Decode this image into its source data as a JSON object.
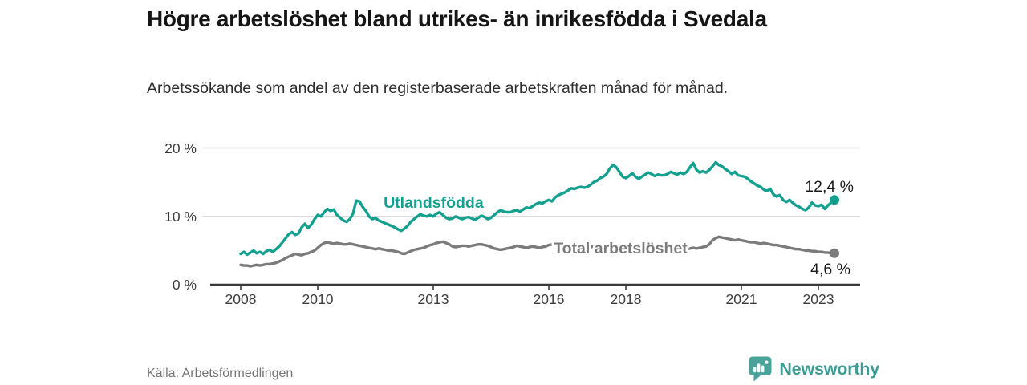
{
  "header": {
    "title": "Högre arbetslöshet bland utrikes- än inrikesfödda i Svedala",
    "subtitle": "Arbetssökande som andel av den registerbaserade arbetskraften månad för månad."
  },
  "footer": {
    "source": "Källa: Arbetsförmedlingen",
    "brand": "Newsworthy",
    "brand_icon": "bar-chart-speech-bubble-icon"
  },
  "colors": {
    "foreign_series": "#14a08e",
    "total_series": "#7b7b7b",
    "grid": "#dadada",
    "axis": "#3a3a3a",
    "tick_text": "#3d3d3d",
    "value_text": "#1a1a1a",
    "source_text": "#767676",
    "brand_teal": "#3e9c94",
    "brand_icon_teal": "#4aa29a"
  },
  "chart_data": {
    "type": "line",
    "title": "Högre arbetslöshet bland utrikes- än inrikesfödda i Svedala",
    "subtitle": "Arbetssökande som andel av den registerbaserade arbetskraften månad för månad.",
    "unit": "%",
    "x_interval": "monthly",
    "x_start": "2008-01",
    "x_end": "2023-06",
    "xlim": [
      2006.85,
      2024.1
    ],
    "ylim": [
      0,
      21
    ],
    "grid": "horizontal",
    "legend": "inline-labels",
    "y_ticks": [
      0,
      10,
      20
    ],
    "y_tick_labels": [
      "0 %",
      "10 %",
      "20 %"
    ],
    "x_ticks": [
      2008,
      2010,
      2013,
      2016,
      2018,
      2021,
      2023
    ],
    "x_tick_labels": [
      "2008",
      "2010",
      "2013",
      "2016",
      "2018",
      "2021",
      "2023"
    ],
    "series": [
      {
        "name": "Utlandsfödda",
        "end_label": "12,4 %",
        "end_value": 12.4,
        "label_anchor": {
          "year": 2011.71,
          "value": 11.25
        },
        "values": [
          4.5,
          4.8,
          4.4,
          4.7,
          5.0,
          4.6,
          4.8,
          4.5,
          4.9,
          5.1,
          4.8,
          5.2,
          5.6,
          6.2,
          6.8,
          7.4,
          7.7,
          7.3,
          7.5,
          8.4,
          8.9,
          8.3,
          8.8,
          9.6,
          10.2,
          10.0,
          10.6,
          11.1,
          10.8,
          11.0,
          10.2,
          9.8,
          9.4,
          9.2,
          9.6,
          10.4,
          12.3,
          12.2,
          11.4,
          10.8,
          10.0,
          9.6,
          9.8,
          9.4,
          9.2,
          9.0,
          8.8,
          8.6,
          8.4,
          8.1,
          7.9,
          8.2,
          8.6,
          9.2,
          9.6,
          10.0,
          10.3,
          10.1,
          10.0,
          10.2,
          10.0,
          10.4,
          10.6,
          10.2,
          9.8,
          9.6,
          9.7,
          10.0,
          9.8,
          9.6,
          9.8,
          9.9,
          9.7,
          9.5,
          9.8,
          10.1,
          9.9,
          9.6,
          9.8,
          10.2,
          10.6,
          10.9,
          10.7,
          10.6,
          10.6,
          10.8,
          10.9,
          10.7,
          11.0,
          11.3,
          11.2,
          11.5,
          11.8,
          12.0,
          11.9,
          12.2,
          12.4,
          12.2,
          12.8,
          13.1,
          13.3,
          13.5,
          13.8,
          14.1,
          14.0,
          14.2,
          14.3,
          14.2,
          14.3,
          14.6,
          15.0,
          15.2,
          15.6,
          15.8,
          16.2,
          17.0,
          17.5,
          17.2,
          16.5,
          15.8,
          15.6,
          15.9,
          16.3,
          15.8,
          15.5,
          15.8,
          16.1,
          16.4,
          16.2,
          15.9,
          16.1,
          16.0,
          16.0,
          16.2,
          16.5,
          16.3,
          16.1,
          16.4,
          16.2,
          16.5,
          17.2,
          17.8,
          16.8,
          16.4,
          16.6,
          16.4,
          16.8,
          17.3,
          17.9,
          17.5,
          17.3,
          16.9,
          16.6,
          16.2,
          16.5,
          16.0,
          15.9,
          15.8,
          15.5,
          15.1,
          14.8,
          14.5,
          14.3,
          13.9,
          13.7,
          14.0,
          13.2,
          12.9,
          13.1,
          12.4,
          12.1,
          12.4,
          12.0,
          11.6,
          11.4,
          11.1,
          10.9,
          11.3,
          12.0,
          11.6,
          11.5,
          11.7,
          11.1,
          11.6,
          12.0,
          12.4
        ]
      },
      {
        "name": "Total arbetslöshet",
        "end_label": "4,6 %",
        "end_value": 4.6,
        "label_anchor": {
          "year": 2016.13,
          "value": 4.55
        },
        "values": [
          2.9,
          2.8,
          2.8,
          2.7,
          2.8,
          2.9,
          2.8,
          2.9,
          3.0,
          3.0,
          3.1,
          3.2,
          3.4,
          3.6,
          3.9,
          4.1,
          4.3,
          4.5,
          4.4,
          4.3,
          4.5,
          4.6,
          4.8,
          5.0,
          5.4,
          5.8,
          6.1,
          6.2,
          6.1,
          6.0,
          6.1,
          6.0,
          5.9,
          5.9,
          6.0,
          5.9,
          5.8,
          5.7,
          5.6,
          5.5,
          5.4,
          5.3,
          5.2,
          5.3,
          5.2,
          5.1,
          5.0,
          5.0,
          4.9,
          4.8,
          4.6,
          4.5,
          4.7,
          4.9,
          5.1,
          5.2,
          5.3,
          5.4,
          5.6,
          5.8,
          5.9,
          6.1,
          6.2,
          6.3,
          6.1,
          5.9,
          5.6,
          5.5,
          5.6,
          5.7,
          5.7,
          5.6,
          5.7,
          5.8,
          5.9,
          5.9,
          5.8,
          5.7,
          5.5,
          5.3,
          5.2,
          5.1,
          5.2,
          5.3,
          5.4,
          5.5,
          5.7,
          5.6,
          5.5,
          5.4,
          5.5,
          5.6,
          5.5,
          5.4,
          5.5,
          5.6,
          5.8,
          5.9,
          5.9,
          5.8,
          5.7,
          5.6,
          5.5,
          5.6,
          5.5,
          5.4,
          5.5,
          5.4,
          5.4,
          5.5,
          5.6,
          5.5,
          5.4,
          5.5,
          5.6,
          5.5,
          5.4,
          5.5,
          5.6,
          5.5,
          5.5,
          5.6,
          5.5,
          5.4,
          5.5,
          5.6,
          5.5,
          5.4,
          5.3,
          5.4,
          5.5,
          5.4,
          5.3,
          5.2,
          5.3,
          5.2,
          5.1,
          5.2,
          5.3,
          5.2,
          5.3,
          5.4,
          5.3,
          5.4,
          5.5,
          5.6,
          5.9,
          6.5,
          6.8,
          7.0,
          6.9,
          6.8,
          6.7,
          6.6,
          6.5,
          6.6,
          6.5,
          6.4,
          6.3,
          6.2,
          6.2,
          6.1,
          6.0,
          6.1,
          6.0,
          5.9,
          5.8,
          5.8,
          5.7,
          5.6,
          5.5,
          5.4,
          5.3,
          5.2,
          5.2,
          5.1,
          5.0,
          5.0,
          4.9,
          4.9,
          4.8,
          4.8,
          4.7,
          4.7,
          4.6,
          4.6
        ]
      }
    ]
  }
}
